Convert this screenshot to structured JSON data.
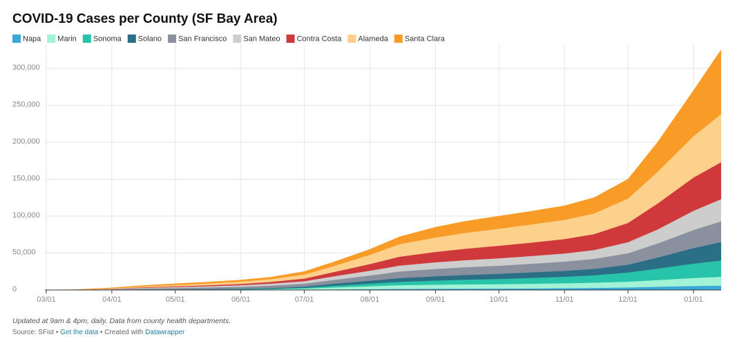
{
  "chart_data": {
    "type": "stacked_area",
    "title": "COVID-19 Cases per County (SF Bay Area)",
    "x": [
      "03/01",
      "03/15",
      "04/01",
      "04/15",
      "05/01",
      "05/15",
      "06/01",
      "06/15",
      "07/01",
      "07/15",
      "08/01",
      "08/15",
      "09/01",
      "09/15",
      "10/01",
      "10/15",
      "11/01",
      "11/15",
      "12/01",
      "12/15",
      "01/01",
      "01/14"
    ],
    "xticks": [
      "03/01",
      "04/01",
      "05/01",
      "06/01",
      "07/01",
      "08/01",
      "09/01",
      "10/01",
      "11/01",
      "12/01",
      "01/01"
    ],
    "ylim": [
      0,
      330000
    ],
    "yticks": [
      0,
      {
        "value": 50000,
        "label": "50,000"
      },
      {
        "value": 100000,
        "label": "100,000"
      },
      {
        "value": 150000,
        "label": "150,000"
      },
      {
        "value": 200000,
        "label": "200,000"
      },
      {
        "value": 250000,
        "label": "250,000"
      },
      {
        "value": 300000,
        "label": "300,000"
      }
    ],
    "grid": true,
    "series": [
      {
        "name": "Napa",
        "color": "#3aa8d8",
        "values": [
          0,
          5,
          50,
          80,
          100,
          150,
          200,
          300,
          500,
          800,
          1200,
          1600,
          1800,
          1900,
          2000,
          2200,
          2500,
          2900,
          3500,
          4500,
          5500,
          6000
        ]
      },
      {
        "name": "Marin",
        "color": "#a2f2d6",
        "values": [
          0,
          20,
          150,
          200,
          250,
          350,
          500,
          800,
          1500,
          2800,
          4000,
          5000,
          5500,
          5800,
          6000,
          6300,
          6700,
          7100,
          7800,
          9000,
          10800,
          12000
        ]
      },
      {
        "name": "Sonoma",
        "color": "#27c4a9",
        "values": [
          0,
          10,
          100,
          200,
          250,
          350,
          500,
          700,
          1200,
          2200,
          3500,
          4500,
          5500,
          6300,
          7000,
          7800,
          8800,
          10000,
          12500,
          15500,
          19500,
          22000
        ]
      },
      {
        "name": "Solano",
        "color": "#2b6f87",
        "values": [
          0,
          5,
          80,
          200,
          300,
          400,
          600,
          900,
          1500,
          2800,
          4000,
          5000,
          5800,
          6400,
          7000,
          7500,
          8000,
          8700,
          10500,
          15000,
          21000,
          25000
        ]
      },
      {
        "name": "San Francisco",
        "color": "#8a919e",
        "values": [
          0,
          40,
          600,
          1300,
          1800,
          2200,
          2700,
          3300,
          3900,
          5200,
          7000,
          9000,
          10000,
          10500,
          11000,
          11500,
          12500,
          13500,
          15500,
          19000,
          24500,
          28000
        ]
      },
      {
        "name": "San Mateo",
        "color": "#cdcdcd",
        "values": [
          0,
          40,
          500,
          1000,
          1300,
          1600,
          2100,
          2700,
          3400,
          4800,
          6500,
          8000,
          9000,
          9500,
          10000,
          10500,
          11000,
          12000,
          15000,
          19000,
          26000,
          30000
        ]
      },
      {
        "name": "Contra Costa",
        "color": "#d0393b",
        "values": [
          0,
          30,
          300,
          700,
          1000,
          1300,
          1700,
          2300,
          3500,
          5800,
          9000,
          12000,
          14000,
          15500,
          17000,
          18000,
          19500,
          21500,
          26000,
          35000,
          45000,
          50000
        ]
      },
      {
        "name": "Alameda",
        "color": "#fdd08b",
        "values": [
          0,
          50,
          500,
          1100,
          1800,
          2300,
          3000,
          3800,
          5500,
          8200,
          12500,
          17000,
          19500,
          21500,
          23000,
          24500,
          26000,
          28000,
          33000,
          43000,
          56000,
          65000
        ]
      },
      {
        "name": "Santa Clara",
        "color": "#f89c27",
        "values": [
          0,
          300,
          700,
          1200,
          1700,
          1850,
          2200,
          2500,
          4000,
          5400,
          7300,
          9900,
          13900,
          15600,
          17000,
          17700,
          19000,
          21300,
          26200,
          40000,
          61700,
          87000
        ]
      }
    ]
  },
  "footer": {
    "note": "Updated at 9am & 4pm, daily. Data from county health departments.",
    "source": "Source: SFist",
    "separator": "•",
    "get_data": "Get the data",
    "created_with": "Created with",
    "tool": "Datawrapper"
  }
}
